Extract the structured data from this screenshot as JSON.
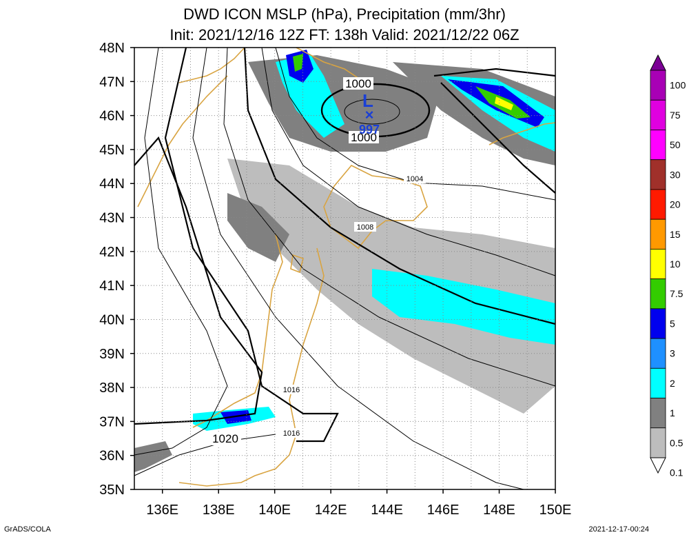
{
  "title_line1": "DWD ICON MSLP (hPa), Precipitation (mm/3hr)",
  "title_line2": "Init: 2021/12/16 12Z  FT: 138h  Valid: 2021/12/22 06Z",
  "credit_left": "GrADS/COLA",
  "credit_right": "2021-12-17-00:24",
  "lat_labels": [
    "48N",
    "47N",
    "46N",
    "45N",
    "44N",
    "43N",
    "42N",
    "41N",
    "40N",
    "39N",
    "38N",
    "37N",
    "36N",
    "35N"
  ],
  "lon_labels": [
    "136E",
    "138E",
    "140E",
    "142E",
    "144E",
    "146E",
    "148E",
    "150E"
  ],
  "low_center": {
    "symbol": "L",
    "marker": "×",
    "pressure": "997"
  },
  "contour_labels": [
    "1000",
    "1000",
    "1004",
    "1008",
    "1016",
    "1016",
    "1020"
  ],
  "colorbar": {
    "labels": [
      "100",
      "75",
      "50",
      "30",
      "20",
      "15",
      "10",
      "7.5",
      "5",
      "3",
      "2",
      "1",
      "0.5",
      "0.1"
    ],
    "colors": [
      "#7b0095",
      "#a800b5",
      "#e000e0",
      "#ff00ff",
      "#a0302a",
      "#ff1a00",
      "#ff9900",
      "#ffff00",
      "#33cc00",
      "#0000ee",
      "#1e90ff",
      "#00ffff",
      "#808080",
      "#bdbdbd",
      "#ffffff"
    ]
  },
  "coast_color": "#d9a441",
  "isobar_color": "#000000"
}
